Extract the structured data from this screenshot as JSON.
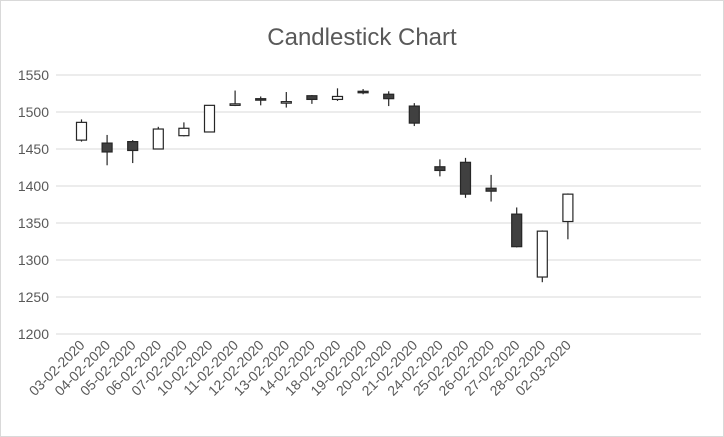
{
  "chart_data": {
    "type": "candlestick",
    "title": "Candlestick Chart",
    "xlabel": "",
    "ylabel": "",
    "ylim": [
      1200,
      1550
    ],
    "y_ticks": [
      1200,
      1250,
      1300,
      1350,
      1400,
      1450,
      1500,
      1550
    ],
    "grid": true,
    "legend": "none",
    "colors": {
      "up_fill": "#ffffff",
      "down_fill": "#404040",
      "stroke": "#262626",
      "grid": "#d9d9d9",
      "text": "#595959"
    },
    "categories": [
      "03-02-2020",
      "04-02-2020",
      "05-02-2020",
      "06-02-2020",
      "07-02-2020",
      "10-02-2020",
      "11-02-2020",
      "12-02-2020",
      "13-02-2020",
      "14-02-2020",
      "18-02-2020",
      "19-02-2020",
      "20-02-2020",
      "21-02-2020",
      "24-02-2020",
      "25-02-2020",
      "26-02-2020",
      "27-02-2020",
      "28-02-2020",
      "02-03-2020"
    ],
    "open": [
      1462,
      1458,
      1460,
      1450,
      1468,
      1473,
      1510,
      1518,
      1513,
      1522,
      1517,
      1528,
      1524,
      1508,
      1426,
      1432,
      1397,
      1362,
      1277,
      1352
    ],
    "high": [
      1490,
      1469,
      1462,
      1480,
      1486,
      1509,
      1529,
      1521,
      1527,
      1523,
      1532,
      1531,
      1528,
      1512,
      1436,
      1438,
      1415,
      1371,
      1340,
      1390
    ],
    "low": [
      1460,
      1428,
      1431,
      1450,
      1467,
      1473,
      1508,
      1509,
      1506,
      1511,
      1515,
      1524,
      1508,
      1481,
      1413,
      1384,
      1379,
      1317,
      1270,
      1328
    ],
    "close": [
      1486,
      1446,
      1448,
      1477,
      1478,
      1509,
      1511,
      1516,
      1514,
      1517,
      1521,
      1527,
      1518,
      1485,
      1421,
      1389,
      1393,
      1318,
      1339,
      1389
    ]
  }
}
